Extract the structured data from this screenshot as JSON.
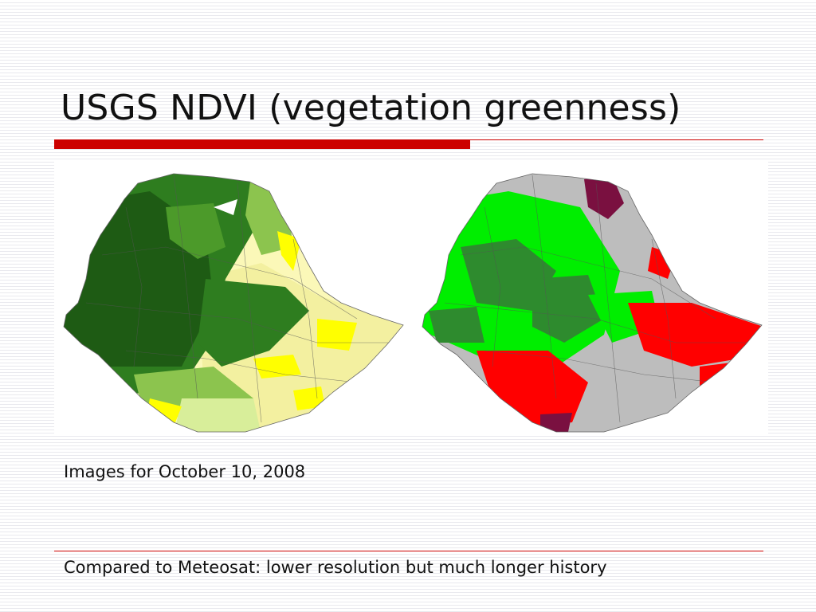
{
  "slide": {
    "title": "USGS NDVI (vegetation greenness)",
    "caption": "Images for October 10, 2008",
    "footer": "Compared to Meteosat: lower resolution but much longer history"
  },
  "maps": [
    {
      "name": "NDVI map of Ethiopia",
      "palette": [
        "#1e5b14",
        "#2e7d1f",
        "#4c9a2a",
        "#8cc44e",
        "#d8ee9a",
        "#fbf8b8",
        "#ffff00"
      ]
    },
    {
      "name": "NDVI anomaly map of Ethiopia",
      "palette": [
        "#bdbdbd",
        "#00ee00",
        "#2e8b2e",
        "#ff0000",
        "#7a1040"
      ]
    }
  ],
  "colors": {
    "accent_red": "#cc0000",
    "stripe": "#e9e9ee"
  }
}
